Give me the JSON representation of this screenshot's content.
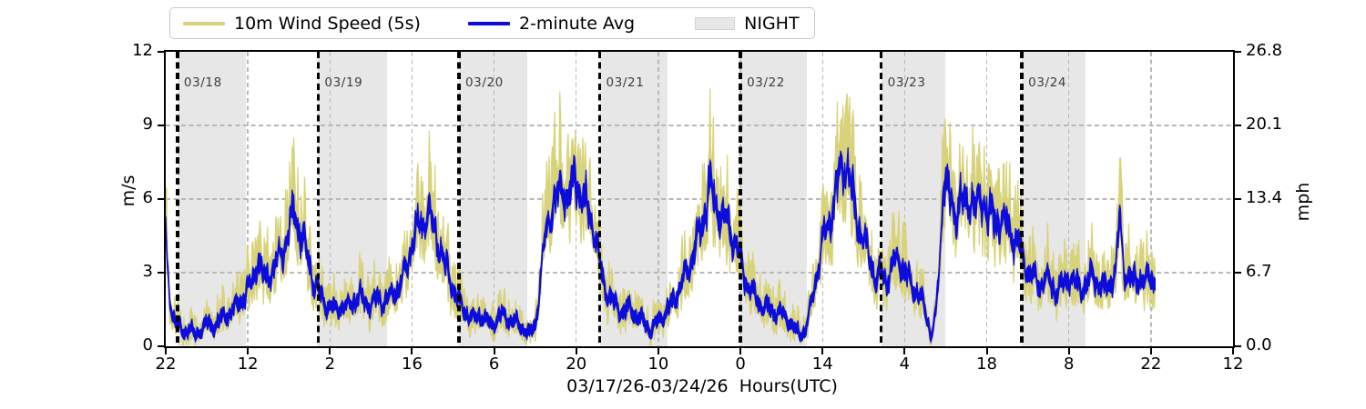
{
  "axes": {
    "xlabel": "03/17/26-03/24/26  Hours(UTC)",
    "ylabel_left": "m/s",
    "ylabel_right": "mph",
    "xlim_hours_since_start": [
      0,
      182
    ],
    "ylim_ms": [
      0,
      12
    ],
    "ylim_mph": [
      0,
      26.8
    ],
    "grid": true,
    "x_ticks": [
      {
        "t": 0,
        "label": "22"
      },
      {
        "t": 14,
        "label": "12"
      },
      {
        "t": 28,
        "label": "2"
      },
      {
        "t": 42,
        "label": "16"
      },
      {
        "t": 56,
        "label": "6"
      },
      {
        "t": 70,
        "label": "20"
      },
      {
        "t": 84,
        "label": "10"
      },
      {
        "t": 98,
        "label": "0"
      },
      {
        "t": 112,
        "label": "14"
      },
      {
        "t": 126,
        "label": "4"
      },
      {
        "t": 140,
        "label": "18"
      },
      {
        "t": 154,
        "label": "8"
      },
      {
        "t": 168,
        "label": "22"
      },
      {
        "t": 182,
        "label": "12"
      }
    ],
    "y_ticks_left": [
      {
        "v": 0,
        "label": "0"
      },
      {
        "v": 3,
        "label": "3"
      },
      {
        "v": 6,
        "label": "6"
      },
      {
        "v": 9,
        "label": "9"
      },
      {
        "v": 12,
        "label": "12"
      }
    ],
    "y_ticks_right": [
      {
        "v": 0,
        "label": "0.0"
      },
      {
        "v": 3,
        "label": "6.7"
      },
      {
        "v": 6,
        "label": "13.4"
      },
      {
        "v": 9,
        "label": "20.1"
      },
      {
        "v": 12,
        "label": "26.8"
      }
    ]
  },
  "legend": {
    "items": [
      {
        "label": "10m Wind Speed (5s)",
        "type": "line",
        "color": "#d8d37a"
      },
      {
        "label": "2-minute Avg",
        "type": "line",
        "color": "#0c0cdc"
      },
      {
        "label": "NIGHT",
        "type": "patch",
        "color": "#e7e7e7"
      }
    ]
  },
  "chart_data": {
    "type": "line",
    "title": "",
    "xlabel": "03/17/26-03/24/26  Hours(UTC)",
    "ylabel": "m/s",
    "ylabel_secondary": "mph",
    "x_unit": "hours since 03/17/26 22:00 UTC",
    "x_range_hours": [
      0,
      182
    ],
    "data_end_hour": 168.7,
    "ylim": [
      0,
      12
    ],
    "legend_position": "top-left, outside axes",
    "night_bands_hours": [
      [
        2,
        13.7
      ],
      [
        26,
        37.7
      ],
      [
        50,
        61.7
      ],
      [
        74,
        85.6
      ],
      [
        98,
        109.4
      ],
      [
        122,
        133.0
      ],
      [
        146,
        156.8
      ]
    ],
    "day_lines": [
      {
        "t": 2,
        "label": "03/18"
      },
      {
        "t": 26,
        "label": "03/19"
      },
      {
        "t": 50,
        "label": "03/20"
      },
      {
        "t": 74,
        "label": "03/21"
      },
      {
        "t": 98,
        "label": "03/22"
      },
      {
        "t": 122,
        "label": "03/23"
      },
      {
        "t": 146,
        "label": "03/24"
      }
    ],
    "series": [
      {
        "name": "10m Wind Speed (5s)",
        "color": "#d8d37a",
        "style": "raw 5-second samples forming a noisy envelope around the 2-minute average",
        "gust_top_rule": "avg + (0.45+0.30*avg)*(0.2+1.2*r^2)",
        "lull_bottom_rule": "max(0, avg - (0.35+0.22*avg)*(0.25+1.05*r^2))"
      },
      {
        "name": "2-minute Avg",
        "color": "#0c0cdc",
        "keyframes_t_hours": [
          0,
          0.3,
          1,
          2,
          3,
          4,
          5,
          6,
          7,
          8,
          9,
          10,
          11,
          12,
          13,
          14,
          15,
          15.7,
          16.3,
          17,
          18,
          19,
          20,
          21,
          21.9,
          22.6,
          23.5,
          24.5,
          25.5,
          26,
          27,
          28,
          29,
          30,
          31,
          32,
          33,
          34,
          35,
          36,
          37,
          38,
          39,
          40,
          41,
          42,
          43,
          44,
          44.8,
          45.6,
          46.5,
          47.5,
          48.5,
          49.5,
          50.5,
          51.5,
          52.5,
          53.5,
          54.5,
          55.5,
          56.5,
          57.5,
          58.5,
          60,
          61,
          62,
          63,
          63.6,
          64.3,
          65,
          66,
          67,
          67.8,
          68.5,
          69.3,
          70,
          70.8,
          71.5,
          72.5,
          73.3,
          74,
          75,
          76,
          77,
          78,
          79,
          80,
          81,
          82,
          82.6,
          83.3,
          84,
          85,
          86,
          87,
          88,
          89,
          90,
          91,
          92,
          92.7,
          93.5,
          94.5,
          95.5,
          96.5,
          97.3,
          98,
          99,
          100,
          101,
          102,
          103,
          104,
          105,
          106,
          107,
          108,
          109,
          110,
          111,
          112,
          113,
          114,
          115,
          115.9,
          116.7,
          117.5,
          118.5,
          119.5,
          120.5,
          121.3,
          122,
          123,
          124,
          125,
          126,
          127,
          128,
          129,
          130,
          130.5,
          131.3,
          132,
          132.7,
          133.5,
          134.5,
          135.5,
          136.5,
          137.5,
          138.5,
          139.5,
          140.5,
          141.5,
          142.5,
          143.5,
          144.5,
          145.3,
          146,
          147,
          148,
          149,
          150,
          151,
          152,
          153,
          154,
          155,
          156,
          157,
          158,
          159,
          160,
          161,
          162,
          162.7,
          163.4,
          164,
          165,
          166,
          167,
          168,
          168.7
        ],
        "keyframes_ms": [
          4.5,
          3.0,
          1.4,
          0.9,
          0.5,
          0.8,
          0.4,
          0.7,
          0.9,
          0.8,
          1.0,
          1.2,
          1.4,
          1.6,
          1.9,
          2.3,
          2.7,
          3.6,
          3.0,
          2.8,
          3.1,
          3.4,
          4.0,
          4.6,
          5.5,
          4.9,
          4.3,
          3.3,
          2.5,
          2.2,
          1.8,
          1.6,
          1.5,
          1.7,
          1.6,
          1.8,
          2.1,
          1.8,
          1.7,
          2.0,
          1.8,
          2.0,
          2.2,
          2.5,
          3.2,
          4.3,
          4.8,
          5.1,
          5.6,
          4.9,
          4.2,
          3.4,
          2.7,
          2.0,
          1.6,
          1.3,
          1.1,
          1.3,
          1.1,
          0.9,
          1.1,
          1.3,
          1.1,
          0.9,
          0.7,
          0.5,
          0.9,
          2.0,
          3.6,
          5.0,
          5.9,
          6.2,
          6.6,
          6.1,
          6.4,
          7.0,
          6.2,
          5.8,
          5.3,
          4.4,
          3.3,
          2.3,
          1.9,
          1.6,
          1.4,
          1.6,
          1.3,
          1.1,
          0.9,
          0.6,
          0.8,
          1.1,
          1.3,
          1.6,
          2.1,
          2.6,
          3.1,
          3.9,
          4.6,
          5.6,
          6.8,
          5.9,
          5.5,
          5.1,
          4.7,
          4.2,
          3.4,
          2.6,
          2.2,
          1.8,
          1.6,
          1.5,
          1.4,
          1.3,
          1.1,
          0.8,
          0.5,
          0.6,
          1.6,
          3.0,
          4.1,
          5.0,
          6.0,
          7.0,
          7.6,
          6.6,
          5.6,
          4.6,
          4.0,
          3.2,
          2.6,
          3.0,
          2.7,
          3.3,
          3.7,
          3.0,
          2.6,
          2.2,
          1.8,
          1.0,
          0.4,
          1.2,
          3.5,
          7.5,
          6.0,
          5.3,
          6.1,
          5.5,
          6.3,
          5.6,
          6.0,
          5.4,
          5.0,
          5.3,
          4.8,
          4.5,
          4.2,
          3.7,
          3.1,
          2.8,
          2.5,
          2.8,
          2.5,
          2.2,
          2.5,
          2.9,
          2.6,
          2.3,
          2.6,
          2.9,
          2.6,
          2.3,
          2.6,
          3.1,
          5.3,
          3.2,
          2.9,
          2.6,
          2.9,
          2.6,
          2.9,
          2.6
        ]
      }
    ],
    "colors": {
      "wind_5s": "#d8d37a",
      "two_minute_avg": "#0c0cdc",
      "night_shading": "#e7e7e7",
      "grid": "#b8b8b8",
      "day_line": "#000000",
      "day_label": "#3d3d3d"
    }
  }
}
